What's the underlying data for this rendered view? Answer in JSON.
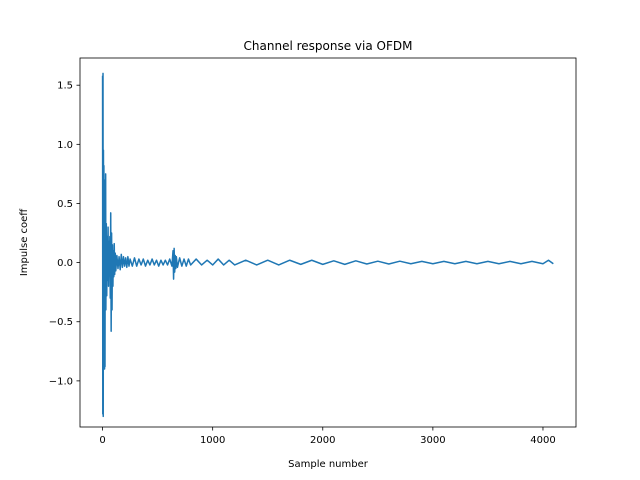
{
  "chart_data": {
    "type": "line",
    "title": "Channel response via OFDM",
    "xlabel": "Sample number",
    "ylabel": "Impulse coeff",
    "xlim": [
      -205,
      4300
    ],
    "ylim": [
      -1.39,
      1.73
    ],
    "xticks": [
      0,
      1000,
      2000,
      3000,
      4000
    ],
    "xtick_labels": [
      "0",
      "1000",
      "2000",
      "3000",
      "4000"
    ],
    "yticks": [
      -1.0,
      -0.5,
      0.0,
      0.5,
      1.0,
      1.5
    ],
    "ytick_labels": [
      "−1.0",
      "−0.5",
      "0.0",
      "0.5",
      "1.0",
      "1.5"
    ],
    "grid": false,
    "series": [
      {
        "color": "#1f77b4",
        "x": [
          0,
          2,
          4,
          6,
          8,
          10,
          12,
          14,
          16,
          18,
          20,
          22,
          24,
          26,
          28,
          30,
          34,
          38,
          42,
          46,
          50,
          54,
          58,
          62,
          66,
          70,
          74,
          78,
          82,
          86,
          90,
          94,
          98,
          102,
          106,
          110,
          115,
          120,
          130,
          140,
          150,
          160,
          170,
          180,
          190,
          200,
          210,
          220,
          230,
          240,
          250,
          270,
          290,
          310,
          330,
          350,
          370,
          390,
          410,
          430,
          450,
          470,
          490,
          510,
          530,
          550,
          570,
          590,
          610,
          630,
          640,
          645,
          650,
          655,
          660,
          665,
          670,
          680,
          700,
          720,
          740,
          760,
          780,
          800,
          850,
          900,
          950,
          1000,
          1050,
          1100,
          1150,
          1200,
          1300,
          1400,
          1500,
          1600,
          1700,
          1800,
          1900,
          2000,
          2100,
          2200,
          2300,
          2400,
          2500,
          2600,
          2700,
          2800,
          2900,
          3000,
          3100,
          3200,
          3300,
          3400,
          3500,
          3600,
          3700,
          3800,
          3900,
          4000,
          4050,
          4094
        ],
        "y": [
          1.58,
          -1.28,
          1.6,
          -1.3,
          0.95,
          -0.75,
          0.82,
          -0.6,
          0.7,
          -0.9,
          0.45,
          -0.88,
          0.2,
          -0.35,
          0.75,
          -0.4,
          0.33,
          -0.28,
          0.22,
          -0.15,
          0.3,
          -0.2,
          0.18,
          -0.1,
          0.22,
          -0.3,
          0.42,
          -0.58,
          0.25,
          -0.4,
          0.15,
          -0.2,
          0.1,
          -0.12,
          0.16,
          -0.1,
          0.08,
          -0.07,
          0.06,
          -0.05,
          0.05,
          -0.06,
          0.07,
          -0.04,
          0.05,
          -0.03,
          0.04,
          -0.04,
          0.05,
          -0.03,
          0.03,
          -0.03,
          0.04,
          -0.03,
          0.03,
          -0.02,
          0.03,
          -0.03,
          0.02,
          -0.02,
          0.03,
          -0.02,
          0.02,
          -0.03,
          0.02,
          -0.02,
          0.02,
          -0.02,
          0.03,
          -0.03,
          0.1,
          -0.14,
          0.12,
          -0.08,
          0.06,
          -0.05,
          0.05,
          -0.04,
          0.04,
          -0.03,
          0.03,
          -0.03,
          0.03,
          -0.02,
          0.03,
          -0.02,
          0.02,
          -0.02,
          0.03,
          -0.02,
          0.02,
          -0.02,
          0.02,
          -0.02,
          0.02,
          -0.02,
          0.02,
          -0.015,
          0.02,
          -0.015,
          0.015,
          -0.015,
          0.015,
          -0.012,
          0.012,
          -0.012,
          0.012,
          -0.01,
          0.01,
          -0.01,
          0.01,
          -0.01,
          0.01,
          -0.01,
          0.01,
          -0.01,
          0.01,
          -0.01,
          0.01,
          -0.01,
          0.02,
          -0.01
        ]
      }
    ]
  }
}
